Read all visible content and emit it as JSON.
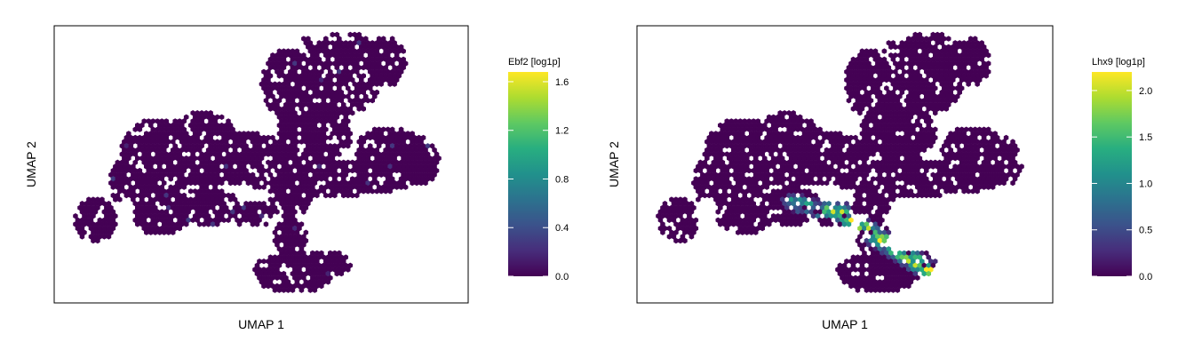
{
  "chart_data": [
    {
      "type": "heatmap",
      "subtype": "hexbin-umap",
      "xlabel": "UMAP 1",
      "ylabel": "UMAP 2",
      "colormap": "viridis",
      "colorbar": {
        "title": "Ebf2 [log1p]",
        "range": [
          0.0,
          1.68
        ],
        "ticks": [
          0.0,
          0.4,
          0.8,
          1.2,
          1.6
        ],
        "tick_labels": [
          "0.0",
          "0.4",
          "0.8",
          "1.2",
          "1.6"
        ]
      },
      "expression_note": "uniformly near 0 (dark purple) with a few faint blue points",
      "max_observed": 0.3
    },
    {
      "type": "heatmap",
      "subtype": "hexbin-umap",
      "xlabel": "UMAP 1",
      "ylabel": "UMAP 2",
      "colormap": "viridis",
      "colorbar": {
        "title": "Lhx9 [log1p]",
        "range": [
          0.0,
          2.2
        ],
        "ticks": [
          0.0,
          0.5,
          1.0,
          1.5,
          2.0
        ],
        "tick_labels": [
          "0.0",
          "0.5",
          "1.0",
          "1.5",
          "2.0"
        ]
      },
      "expression_note": "elevated along a diagonal streak in the lower-middle lobe of the embedding",
      "max_observed": 2.2
    }
  ],
  "colors": {
    "low": "#440154",
    "mid": "#21918c",
    "high": "#fde725",
    "frame": "#000000"
  }
}
